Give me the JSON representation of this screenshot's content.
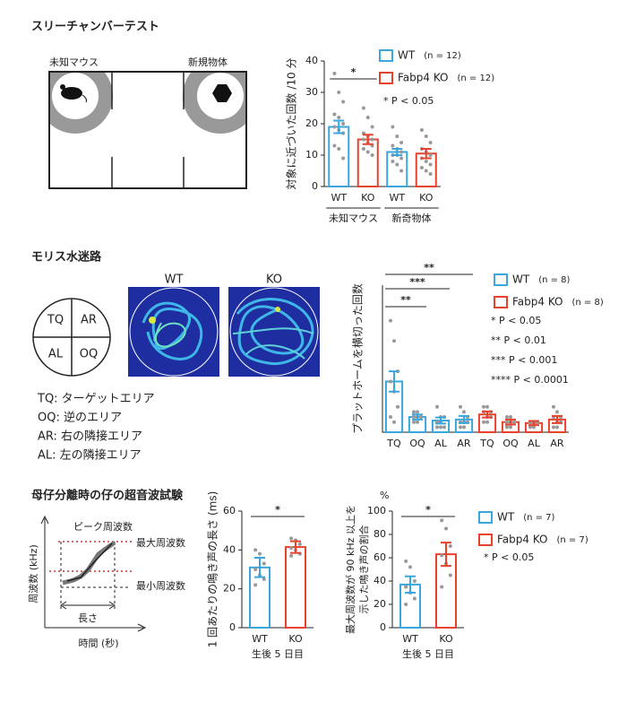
{
  "three_chamber": {
    "title": "スリーチャンバーテスト",
    "labels": [
      "未知マウス",
      "新規物体"
    ]
  },
  "morris": {
    "title": "モリス水迷路",
    "quadrants": [
      "TQ",
      "AR",
      "AL",
      "OQ"
    ],
    "heatmap_labels": [
      "WT",
      "KO"
    ],
    "definitions": [
      "TQ: ターゲットエリア",
      "OQ: 逆のエリア",
      "AR: 右の隣接エリア",
      "AL: 左の隣接エリア"
    ]
  },
  "ultrasonic": {
    "title": "母仔分離時の仔の超音波試験",
    "labels": {
      "peak": "ピーク周波数",
      "max": "最大周波数",
      "min": "最小周波数",
      "length": "長さ",
      "ylabel": "周波数 (kHz)",
      "xlabel": "時間 (秒)"
    }
  },
  "chart_data": [
    {
      "type": "bar",
      "ylabel": "対象に近づいた回数 /10 分",
      "categories": [
        "WT",
        "KO",
        "WT",
        "KO"
      ],
      "groups": [
        "未知マウス",
        "新奇物体"
      ],
      "values": [
        19,
        15,
        11,
        10.5
      ],
      "errors": [
        2,
        1.5,
        1,
        1.5
      ],
      "points": [
        [
          36,
          30,
          27,
          23,
          22,
          20,
          19,
          18,
          17,
          13,
          12,
          9
        ],
        [
          25,
          22,
          19,
          17,
          16,
          15,
          15,
          14,
          13,
          12,
          11,
          10
        ],
        [
          19,
          16,
          14,
          13,
          12,
          11,
          10,
          10,
          9,
          8,
          7,
          5
        ],
        [
          18,
          16,
          14,
          12,
          11,
          10,
          9,
          8,
          7,
          6,
          5,
          4
        ]
      ],
      "colors": [
        "#3aa6dd",
        "#e8412c",
        "#3aa6dd",
        "#e8412c"
      ],
      "ylim": [
        0,
        40
      ],
      "yticks": [
        0,
        10,
        20,
        30,
        40
      ],
      "legend": [
        {
          "name": "WT",
          "color": "#3aa6dd",
          "n": "(n = 12)"
        },
        {
          "name": "Fabp4 KO",
          "color": "#e8412c",
          "n": "(n = 12)"
        }
      ],
      "significance": [
        "*"
      ],
      "annotations": [
        "* P < 0.05"
      ]
    },
    {
      "type": "bar",
      "ylabel": "プラットホームを横切った回数",
      "categories": [
        "TQ",
        "OQ",
        "AL",
        "AR",
        "TQ",
        "OQ",
        "AL",
        "AR"
      ],
      "values": [
        10,
        3,
        2.3,
        2.5,
        3.5,
        2,
        1.8,
        2.5
      ],
      "errors": [
        2,
        0.5,
        0.6,
        0.7,
        0.6,
        0.5,
        0.4,
        0.7
      ],
      "points": [
        [
          22,
          18,
          12,
          10,
          8,
          5,
          3,
          2
        ],
        [
          4,
          4,
          3,
          3,
          3,
          3,
          2,
          2
        ],
        [
          5,
          3,
          3,
          2,
          2,
          1,
          1,
          1
        ],
        [
          5,
          4,
          3,
          2,
          2,
          2,
          1,
          1
        ],
        [
          5,
          5,
          4,
          4,
          3,
          3,
          2,
          2
        ],
        [
          3,
          3,
          2,
          2,
          2,
          2,
          1,
          1
        ],
        [
          2,
          2,
          2,
          2,
          2,
          2,
          1,
          1
        ],
        [
          5,
          4,
          3,
          3,
          2,
          2,
          1,
          1
        ]
      ],
      "colors": [
        "#3aa6dd",
        "#3aa6dd",
        "#3aa6dd",
        "#3aa6dd",
        "#e8412c",
        "#e8412c",
        "#e8412c",
        "#e8412c"
      ],
      "ylim": [
        0,
        29
      ],
      "legend": [
        {
          "name": "WT",
          "color": "#3aa6dd",
          "n": "(n = 8)"
        },
        {
          "name": "Fabp4 KO",
          "color": "#e8412c",
          "n": "(n = 8)"
        }
      ],
      "significance": [
        "**",
        "***",
        "**"
      ],
      "annotations": [
        "* P < 0.05",
        "** P < 0.01",
        "*** P < 0.001",
        "**** P < 0.0001"
      ]
    },
    {
      "type": "bar",
      "ylabel": "1 回あたりの鳴き声の長さ (ms)",
      "xlabel": "生後 5 日目",
      "categories": [
        "WT",
        "KO"
      ],
      "values": [
        31,
        41.5
      ],
      "errors": [
        5,
        3
      ],
      "points": [
        [
          40,
          38,
          33,
          30,
          27,
          25,
          22
        ],
        [
          46,
          45,
          43,
          41,
          40,
          38,
          37
        ]
      ],
      "colors": [
        "#3aa6dd",
        "#e8412c"
      ],
      "ylim": [
        0,
        60
      ],
      "yticks": [
        0,
        20,
        40,
        60
      ],
      "significance": [
        "*"
      ]
    },
    {
      "type": "bar",
      "ylabel": [
        "最大周波数が 90 kHz 以上を",
        "示した鳴き声の割合"
      ],
      "unit": "%",
      "xlabel": "生後 5 日目",
      "categories": [
        "WT",
        "KO"
      ],
      "values": [
        37,
        63
      ],
      "errors": [
        7,
        10
      ],
      "points": [
        [
          57,
          52,
          40,
          35,
          30,
          25,
          20
        ],
        [
          92,
          85,
          70,
          62,
          55,
          45,
          35
        ]
      ],
      "colors": [
        "#3aa6dd",
        "#e8412c"
      ],
      "ylim": [
        0,
        100
      ],
      "yticks": [
        0,
        20,
        40,
        60,
        80,
        100
      ],
      "legend": [
        {
          "name": "WT",
          "color": "#3aa6dd",
          "n": "(n = 7)"
        },
        {
          "name": "Fabp4 KO",
          "color": "#e8412c",
          "n": "(n = 7)"
        }
      ],
      "significance": [
        "*"
      ],
      "annotations": [
        "* P < 0.05"
      ]
    }
  ]
}
